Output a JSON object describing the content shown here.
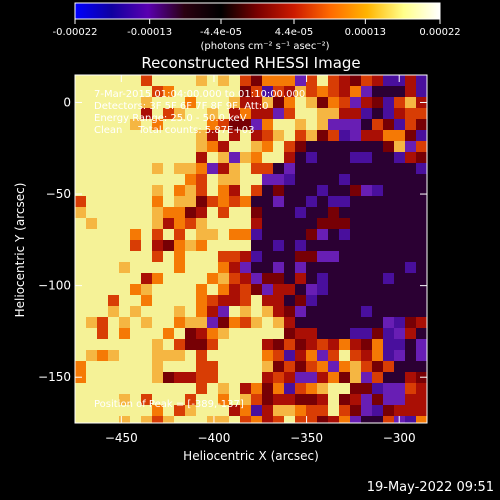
{
  "colorbar": {
    "tick_labels": [
      "-0.00022",
      "-0.00013",
      "-4.4e-05",
      "4.4e-05",
      "0.00013",
      "0.00022"
    ],
    "tick_values": [
      -0.00022,
      -0.00013,
      -4.4e-05,
      4.4e-05,
      0.00013,
      0.00022
    ],
    "range": [
      -0.00022,
      0.00022
    ],
    "unit_label": "(photons cm⁻² s⁻¹ asec⁻²)",
    "stops": [
      "#0000ff",
      "#1000a0",
      "#5a00b0",
      "#2a0010",
      "#000000",
      "#7a0000",
      "#cc1a00",
      "#ff6a00",
      "#ffb400",
      "#ffff8a",
      "#ffffff"
    ]
  },
  "chart_data": {
    "type": "heatmap",
    "title": "Reconstructed RHESSI Image",
    "xlabel": "Heliocentric X (arcsec)",
    "ylabel": "Heliocentric Y (arcsec)",
    "xlim": [
      -475,
      -285
    ],
    "ylim": [
      -175,
      15
    ],
    "x_ticks": [
      -450,
      -400,
      -350,
      -300
    ],
    "y_ticks": [
      0,
      -50,
      -100,
      -150
    ],
    "x_tick_labels": [
      "−450",
      "−400",
      "−350",
      "−300"
    ],
    "y_tick_labels": [
      "0",
      "−50",
      "−100",
      "−150"
    ],
    "annotations": [
      "7-Mar-2015 01:04:00.000 to 01:10:00.000",
      "Detectors: 3F 5F 6F 7F 8F 9F, Att:0",
      "Energy Range: 25.0 - 50.0 keV",
      "Clean     Total counts: 5.87E+03"
    ],
    "peak_text": "Position of Peak = [-389,-137]",
    "peak": [
      -389,
      -137
    ]
  },
  "footer": {
    "timestamp": "19-May-2022 09:51"
  }
}
